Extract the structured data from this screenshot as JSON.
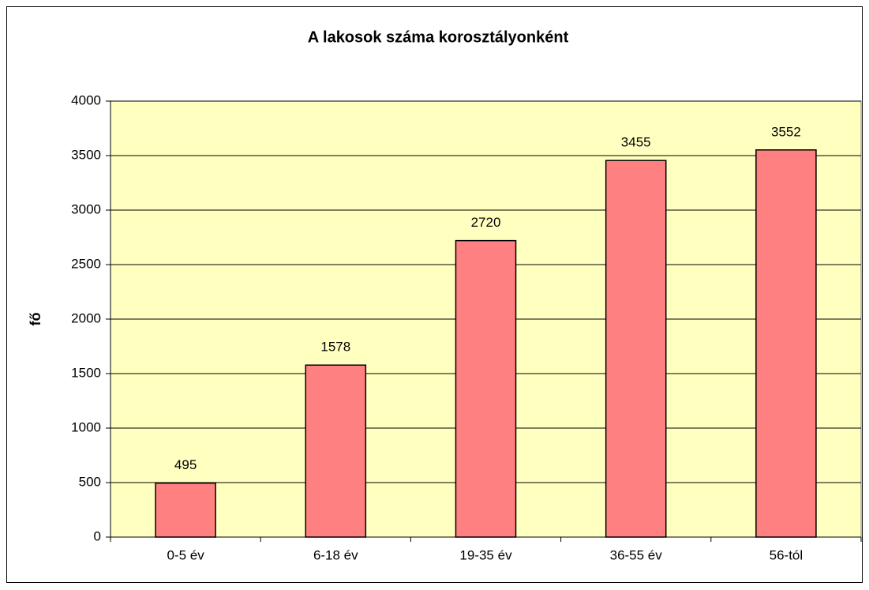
{
  "chart_data": {
    "type": "bar",
    "title": "A lakosok száma korosztályonként",
    "y_label": "fő",
    "categories": [
      "0-5 év",
      "6-18 év",
      "19-35 év",
      "36-55 év",
      "56-tól"
    ],
    "values": [
      495,
      1578,
      2720,
      3455,
      3552
    ],
    "color": "#ff8080",
    "ylim": [
      0,
      4000
    ],
    "yticks": [
      0,
      500,
      1000,
      1500,
      2000,
      2500,
      3000,
      3500,
      4000
    ],
    "grid": true
  }
}
